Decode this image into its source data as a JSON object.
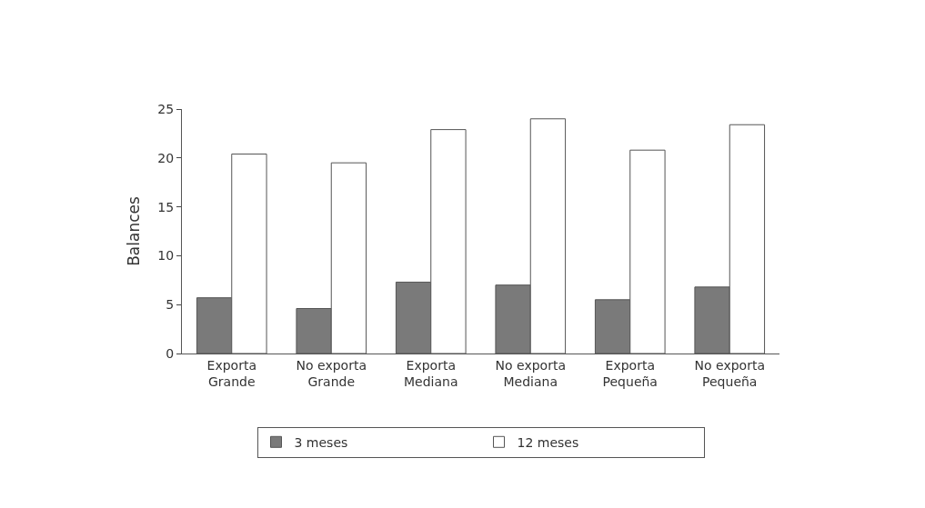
{
  "chart_data": {
    "type": "bar",
    "ylabel": "Balances",
    "categories": [
      "Exporta\nGrande",
      "No exporta\nGrande",
      "Exporta\nMediana",
      "No exporta\nMediana",
      "Exporta\nPequeña",
      "No exporta\nPequeña"
    ],
    "series": [
      {
        "name": "3 meses",
        "color": "#7a7a7a",
        "values": [
          5.7,
          4.6,
          7.3,
          7.0,
          5.5,
          6.8
        ]
      },
      {
        "name": "12 meses",
        "color": "#ffffff",
        "values": [
          20.4,
          19.5,
          22.9,
          24.0,
          20.8,
          23.4
        ]
      }
    ],
    "ylim": [
      0,
      25
    ],
    "yticks": [
      0,
      5,
      10,
      15,
      20,
      25
    ],
    "legend": "bottom"
  }
}
